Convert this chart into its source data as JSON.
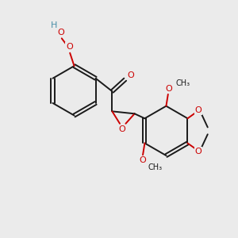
{
  "bg_color": "#ebebeb",
  "bond_color": "#1a1a1a",
  "oxygen_color": "#cc0000",
  "teal_color": "#4a8fa8",
  "linewidth": 1.4,
  "double_sep": 0.08,
  "figsize": [
    3.0,
    3.0
  ],
  "dpi": 100,
  "xlim": [
    0,
    10
  ],
  "ylim": [
    0,
    10
  ]
}
